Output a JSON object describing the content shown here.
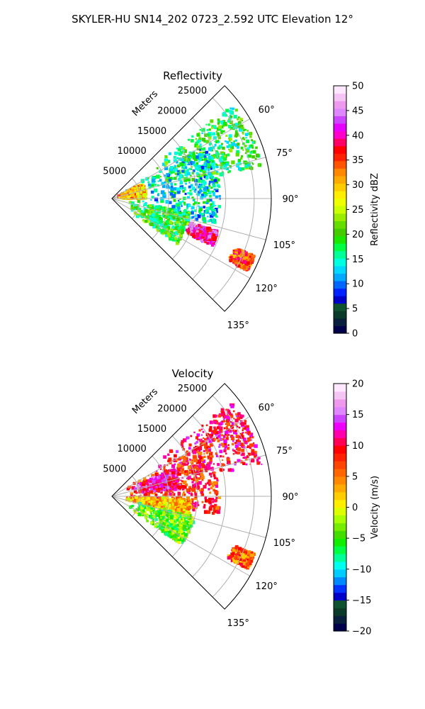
{
  "title": "SKYLER-HU  SN14_202  0723_2.592 UTC Elevation 12°",
  "chart_data": [
    {
      "type": "heatmap",
      "projection": "polar-sector",
      "title": "Reflectivity",
      "range_label": "Meters",
      "range_ticks": [
        5000,
        10000,
        15000,
        20000,
        25000
      ],
      "azimuth_ticks": [
        "60°",
        "75°",
        "90°",
        "105°",
        "120°",
        "135°"
      ],
      "azimuth_range_deg": [
        45,
        135
      ],
      "range_max": 28000,
      "grid": true,
      "colorbar": {
        "label": "Reflectivity dBZ",
        "min": 0,
        "max": 50,
        "ticks": [
          "0",
          "5",
          "10",
          "15",
          "20",
          "25",
          "30",
          "35",
          "40",
          "45",
          "50"
        ],
        "colors": [
          "#00004a",
          "#0a1f3c",
          "#0b3a2a",
          "#0e5230",
          "#0000c8",
          "#0022ff",
          "#0066ff",
          "#00a8ff",
          "#00d8ff",
          "#00ffe0",
          "#00ff99",
          "#00ff44",
          "#1ae600",
          "#44cc00",
          "#66dd00",
          "#99ee00",
          "#ccff00",
          "#eeff00",
          "#ffee00",
          "#ffcc00",
          "#ffaa00",
          "#ff8800",
          "#ff5500",
          "#ff2200",
          "#ff0000",
          "#ff0066",
          "#ff00cc",
          "#e600ff",
          "#cc44ff",
          "#dd88ff",
          "#ee99ee",
          "#f4c4f4",
          "#ffe8ff"
        ]
      },
      "echo_regions": [
        {
          "az": [
            52,
            78
          ],
          "r": [
            8000,
            27000
          ],
          "value": 18
        },
        {
          "az": [
            60,
            105
          ],
          "r": [
            2000,
            19000
          ],
          "value": 14
        },
        {
          "az": [
            64,
            90
          ],
          "r": [
            1000,
            6000
          ],
          "value": 30
        },
        {
          "az": [
            100,
            125
          ],
          "r": [
            3000,
            14000
          ],
          "value": 19
        },
        {
          "az": [
            107,
            115
          ],
          "r": [
            14000,
            19500
          ],
          "value": 40
        },
        {
          "az": [
            112,
            118
          ],
          "r": [
            23000,
            27000
          ],
          "value": 35
        }
      ]
    },
    {
      "type": "heatmap",
      "projection": "polar-sector",
      "title": "Velocity",
      "range_label": "Meters",
      "range_ticks": [
        5000,
        10000,
        15000,
        20000,
        25000
      ],
      "azimuth_ticks": [
        "60°",
        "75°",
        "90°",
        "105°",
        "120°",
        "135°"
      ],
      "azimuth_range_deg": [
        45,
        135
      ],
      "range_max": 28000,
      "grid": true,
      "colorbar": {
        "label": "Velocity (m/s)",
        "min": -20,
        "max": 20,
        "ticks": [
          "−20",
          "−15",
          "−10",
          "−5",
          "0",
          "5",
          "10",
          "15",
          "20"
        ],
        "colors": [
          "#00004a",
          "#0a1f3c",
          "#0b3a2a",
          "#0e5230",
          "#0000c8",
          "#0033ff",
          "#0088ff",
          "#00ccff",
          "#00ffee",
          "#00ff99",
          "#00ff44",
          "#11ee00",
          "#44dd00",
          "#77ee00",
          "#aaff00",
          "#ddff00",
          "#ffee00",
          "#ffcc00",
          "#ffaa00",
          "#ff8800",
          "#ff6600",
          "#ff4400",
          "#ff2200",
          "#ff0000",
          "#ff0055",
          "#ff00aa",
          "#ee00ff",
          "#cc44ff",
          "#dd88ff",
          "#ee99ee",
          "#f4c4f4",
          "#ffe8ff"
        ]
      },
      "echo_regions": [
        {
          "az": [
            52,
            78
          ],
          "r": [
            8000,
            27000
          ],
          "value": 10
        },
        {
          "az": [
            60,
            100
          ],
          "r": [
            2000,
            19000
          ],
          "value": 8
        },
        {
          "az": [
            66,
            84
          ],
          "r": [
            4000,
            12000
          ],
          "value": 12
        },
        {
          "az": [
            92,
            104
          ],
          "r": [
            2000,
            14000
          ],
          "value": 3
        },
        {
          "az": [
            104,
            125
          ],
          "r": [
            3000,
            15000
          ],
          "value": -4
        },
        {
          "az": [
            112,
            118
          ],
          "r": [
            23000,
            27000
          ],
          "value": 6
        }
      ]
    }
  ]
}
